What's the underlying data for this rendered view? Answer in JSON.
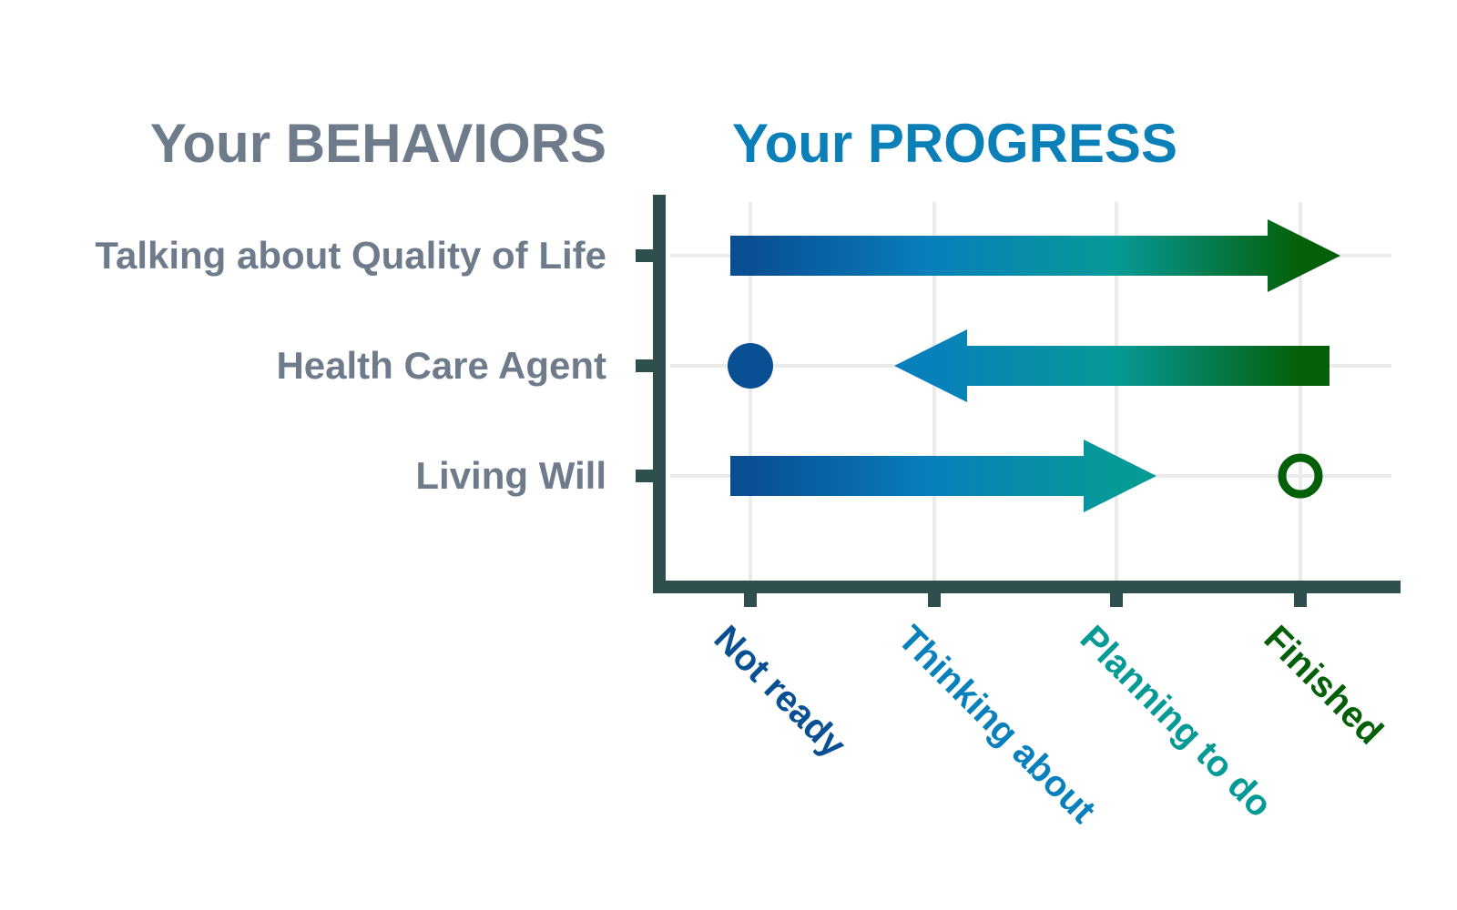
{
  "chart_data": {
    "type": "progress-arrows",
    "left_heading": "Your BEHAVIORS",
    "right_heading": "Your PROGRESS",
    "stages": [
      "Not ready",
      "Thinking about",
      "Planning to do",
      "Finished"
    ],
    "behaviors": [
      {
        "label": "Talking about Quality of Life",
        "from": "Not ready",
        "to": "Finished",
        "marker": "none"
      },
      {
        "label": "Health Care Agent",
        "from": "Finished",
        "to": "Thinking about",
        "marker_stage": "Not ready",
        "marker": "filled-circle"
      },
      {
        "label": "Living Will",
        "from": "Not ready",
        "to": "Planning to do",
        "marker_stage": "Finished",
        "marker": "open-circle"
      }
    ],
    "grid": true,
    "colors": {
      "left_heading": "#6e7b8b",
      "right_heading": "#0a7fb8",
      "row_label": "#6e7b8b",
      "axis": "#2f4f4f",
      "grid": "#ebebeb",
      "stage_colors": [
        "#084f94",
        "#0880bc",
        "#069a97",
        "#046008"
      ]
    }
  }
}
